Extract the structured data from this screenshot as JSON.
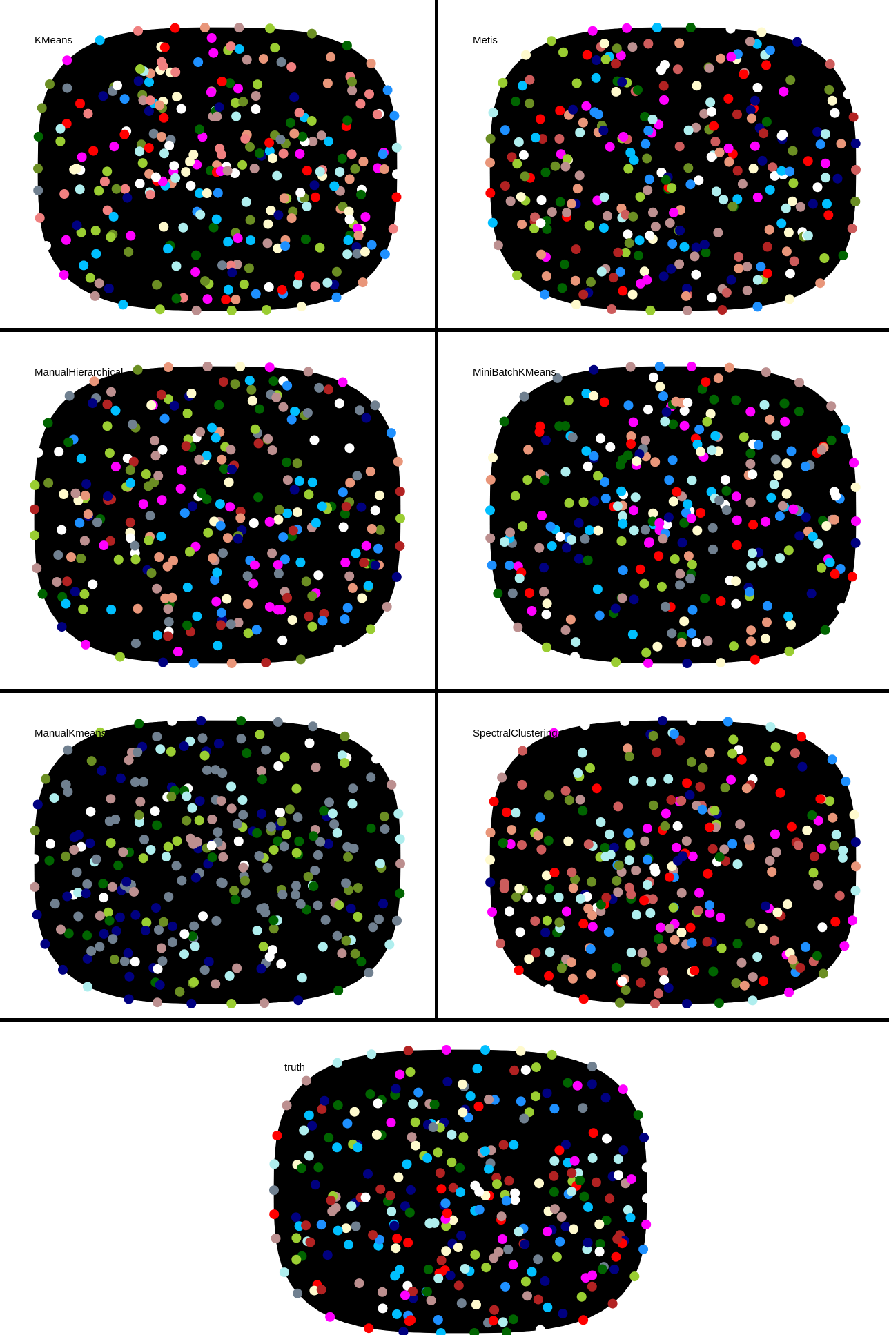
{
  "figure": {
    "panels": [
      {
        "title": "KMeans",
        "palette": [
          "#ff0000",
          "#00bfff",
          "#9acd32",
          "#f08080",
          "#e9967a",
          "#afeeee",
          "#6b8e23",
          "#bc8f8f",
          "#ffffff",
          "#708090",
          "#000080",
          "#ff00ff",
          "#006400",
          "#1e90ff",
          "#fffacd"
        ]
      },
      {
        "title": "Metis",
        "palette": [
          "#1e90ff",
          "#b22222",
          "#9acd32",
          "#000080",
          "#bc8f8f",
          "#ffffff",
          "#ff0000",
          "#6b8e23",
          "#00bfff",
          "#fffacd",
          "#ff00ff",
          "#e9967a",
          "#006400",
          "#cd5c5c",
          "#afeeee"
        ]
      },
      {
        "title": "ManualHierarchical",
        "palette": [
          "#b22222",
          "#6b8e23",
          "#9acd32",
          "#fffacd",
          "#e9967a",
          "#ffffff",
          "#708090",
          "#000080",
          "#ff00ff",
          "#00bfff",
          "#bc8f8f",
          "#1e90ff",
          "#006400"
        ]
      },
      {
        "title": "MiniBatchKMeans",
        "palette": [
          "#bc8f8f",
          "#1e90ff",
          "#9acd32",
          "#ff0000",
          "#00bfff",
          "#708090",
          "#000080",
          "#ff00ff",
          "#006400",
          "#afeeee",
          "#ffffff",
          "#e9967a",
          "#fffacd"
        ]
      },
      {
        "title": "ManualKmeans",
        "palette": [
          "#708090",
          "#708090",
          "#708090",
          "#000080",
          "#000080",
          "#6b8e23",
          "#9acd32",
          "#ffffff",
          "#afeeee",
          "#bc8f8f",
          "#006400"
        ]
      },
      {
        "title": "SpectralClustering",
        "palette": [
          "#cd5c5c",
          "#cd5c5c",
          "#e9967a",
          "#bc8f8f",
          "#1e90ff",
          "#ffffff",
          "#afeeee",
          "#9acd32",
          "#6b8e23",
          "#000080",
          "#ff00ff",
          "#b22222",
          "#006400",
          "#ff0000",
          "#fffacd"
        ]
      },
      {
        "title": "truth",
        "palette": [
          "#b22222",
          "#b22222",
          "#000080",
          "#000080",
          "#708090",
          "#1e90ff",
          "#ff0000",
          "#ffffff",
          "#fffacd",
          "#9acd32",
          "#00bfff",
          "#006400",
          "#afeeee",
          "#ff00ff",
          "#bc8f8f"
        ]
      }
    ]
  }
}
